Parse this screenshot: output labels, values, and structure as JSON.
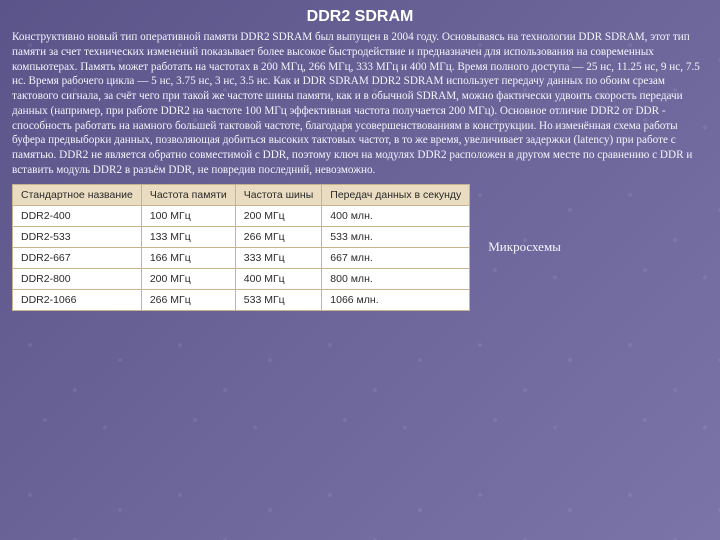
{
  "title": "DDR2 SDRAM",
  "paragraph": "Конструктивно новый тип оперативной памяти DDR2 SDRAM был выпущен в 2004 году. Основываясь на технологии DDR SDRAM, этот тип памяти за счет технических изменений показывает более высокое быстродействие и предназначен для использования на современных компьютерах. Память может работать на частотах в 200 МГц, 266 МГц, 333 МГц и 400 МГц. Время полного доступа — 25 нс, 11.25 нс, 9 нс, 7.5 нс. Время рабочего цикла — 5 нс, 3.75 нс, 3 нс, 3.5 нс. Как и DDR SDRAM DDR2 SDRAM использует передачу данных по обоим срезам тактового сигнала, за счёт чего при такой же частоте шины памяти, как и в обычной SDRAM, можно фактически удвоить скорость передачи данных (например, при работе DDR2 на частоте 100 МГц эффективная частота получается 200 МГц). Основное отличие DDR2 от DDR - способность работать на намного большей тактовой частоте, благодаря усовершенствованиям в конструкции. Но изменённая схема работы буфера предвыборки данных, позволяющая добиться высоких тактовых частот, в то же время, увеличивает задержки (latency) при работе с памятью.\nDDR2 не является обратно совместимой с DDR, поэтому ключ на модулях DDR2 расположен в другом месте по сравнению с DDR и вставить модуль DDR2 в разъём DDR, не повредив последний, невозможно.",
  "table": {
    "columns": [
      "Стандартное название",
      "Частота памяти",
      "Частота шины",
      "Передач данных в секунду"
    ],
    "rows": [
      [
        "DDR2-400",
        "100 МГц",
        "200 МГц",
        "400 млн."
      ],
      [
        "DDR2-533",
        "133 МГц",
        "266 МГц",
        "533 млн."
      ],
      [
        "DDR2-667",
        "166 МГц",
        "333 МГц",
        "667 млн."
      ],
      [
        "DDR2-800",
        "200 МГц",
        "400 МГц",
        "800 млн."
      ],
      [
        "DDR2-1066",
        "266 МГц",
        "533 МГц",
        "1066 млн."
      ]
    ],
    "header_bg": "#e9dcc0",
    "cell_bg": "#ffffff",
    "border_color": "#c7b48c",
    "font_size": 10.5
  },
  "side_label": "Микросхемы",
  "colors": {
    "background_from": "#5a548a",
    "background_to": "#7a74a8",
    "text": "#f5f3fb",
    "title": "#ffffff"
  }
}
